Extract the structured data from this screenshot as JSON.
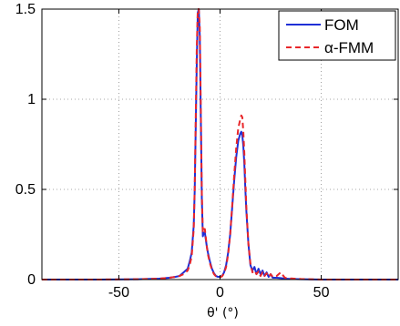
{
  "chart_data": {
    "type": "line",
    "title": "",
    "xlabel": "θ' (°)",
    "ylabel": "",
    "xlim": [
      -88,
      88
    ],
    "ylim": [
      0,
      1.5
    ],
    "xticks": [
      -50,
      0,
      50
    ],
    "xtick_labels": [
      "-50",
      "0",
      "50"
    ],
    "yticks": [
      0,
      0.5,
      1,
      1.5
    ],
    "ytick_labels": [
      "0",
      "0.5",
      "1",
      "1.5"
    ],
    "grid": true,
    "legend_position": "top-right",
    "series": [
      {
        "name": "FOM",
        "color": "#1f2fd6",
        "style": "solid",
        "x": [
          -88,
          -60,
          -40,
          -30,
          -25,
          -22,
          -20,
          -18,
          -16,
          -15,
          -14,
          -13,
          -12.5,
          -12,
          -11.5,
          -11,
          -10.5,
          -10,
          -9.5,
          -9,
          -8.5,
          -8,
          -7.5,
          -7,
          -6.5,
          -6,
          -5,
          -4,
          -3,
          -2,
          -1,
          0,
          1,
          2,
          3,
          4,
          5,
          6,
          7,
          8,
          9,
          10,
          10.5,
          11,
          11.5,
          12,
          12.5,
          13,
          14,
          15,
          16,
          17,
          18,
          19,
          20,
          21,
          22,
          23,
          24,
          25,
          26,
          28,
          30,
          32,
          35,
          40,
          50,
          60,
          88
        ],
        "y": [
          0,
          0,
          0.002,
          0.005,
          0.01,
          0.015,
          0.02,
          0.04,
          0.06,
          0.1,
          0.15,
          0.3,
          0.5,
          0.85,
          1.2,
          1.48,
          1.5,
          1.35,
          0.9,
          0.45,
          0.24,
          0.26,
          0.26,
          0.22,
          0.18,
          0.15,
          0.1,
          0.06,
          0.035,
          0.02,
          0.015,
          0.015,
          0.02,
          0.04,
          0.08,
          0.15,
          0.25,
          0.4,
          0.55,
          0.68,
          0.77,
          0.81,
          0.82,
          0.8,
          0.74,
          0.64,
          0.5,
          0.38,
          0.2,
          0.08,
          0.05,
          0.07,
          0.03,
          0.06,
          0.03,
          0.05,
          0.02,
          0.04,
          0.015,
          0.03,
          0.01,
          0.01,
          0.008,
          0.005,
          0.003,
          0.002,
          0,
          0,
          0
        ]
      },
      {
        "name": "α-FMM",
        "color": "#e8262a",
        "style": "dashed",
        "x": [
          -88,
          -60,
          -40,
          -30,
          -25,
          -22,
          -20,
          -18,
          -16,
          -15,
          -14,
          -13,
          -12.5,
          -12,
          -11.5,
          -11,
          -10.5,
          -10,
          -9.5,
          -9,
          -8.5,
          -8,
          -7.5,
          -7,
          -6.5,
          -6,
          -5,
          -4,
          -3,
          -2,
          -1,
          0,
          1,
          2,
          3,
          4,
          5,
          6,
          7,
          8,
          9,
          10,
          10.5,
          11,
          11.5,
          12,
          12.5,
          13,
          14,
          15,
          16,
          17,
          18,
          19,
          20,
          21,
          22,
          23,
          24,
          25,
          26,
          28,
          30,
          32,
          35,
          40,
          50,
          60,
          88
        ],
        "y": [
          0,
          0,
          0.002,
          0.005,
          0.01,
          0.015,
          0.02,
          0.03,
          0.05,
          0.08,
          0.13,
          0.28,
          0.52,
          0.9,
          1.28,
          1.5,
          1.5,
          1.4,
          0.95,
          0.48,
          0.26,
          0.28,
          0.28,
          0.23,
          0.18,
          0.14,
          0.09,
          0.055,
          0.03,
          0.018,
          0.013,
          0.013,
          0.018,
          0.035,
          0.07,
          0.14,
          0.25,
          0.41,
          0.58,
          0.73,
          0.84,
          0.89,
          0.91,
          0.9,
          0.82,
          0.7,
          0.55,
          0.4,
          0.2,
          0.09,
          0.04,
          0.05,
          0.03,
          0.045,
          0.02,
          0.04,
          0.02,
          0.035,
          0.015,
          0.03,
          0.015,
          0.02,
          0.04,
          0.01,
          0.006,
          0.003,
          0,
          0,
          0
        ]
      }
    ]
  }
}
